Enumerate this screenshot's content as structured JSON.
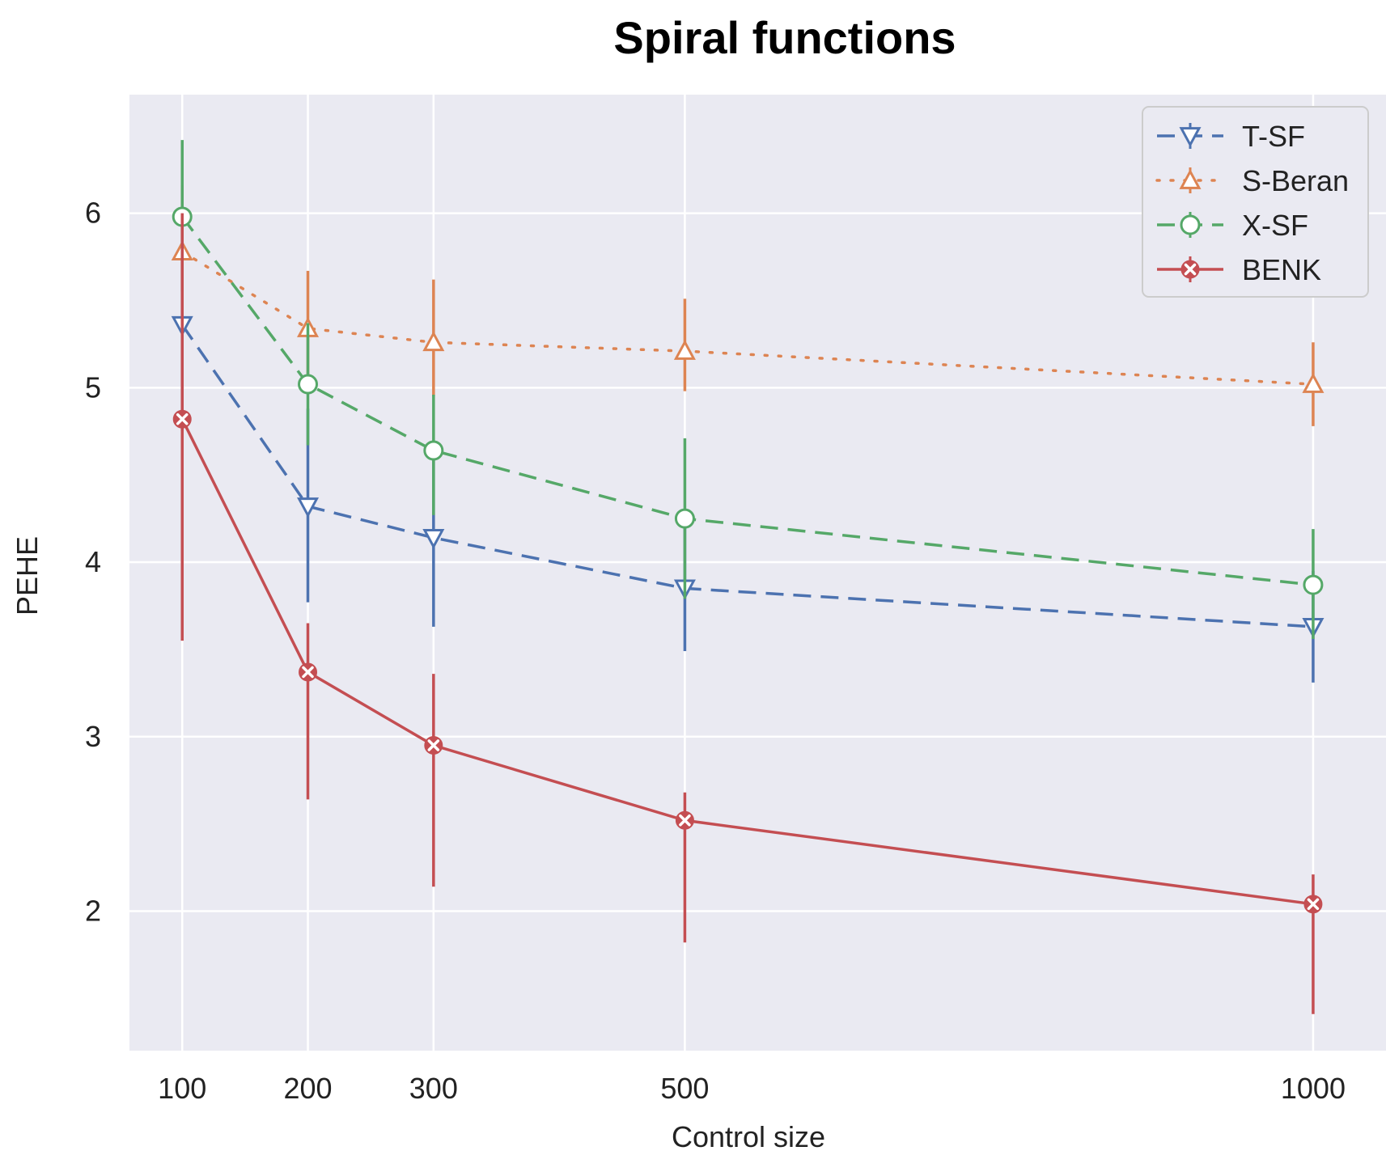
{
  "chart_data": {
    "type": "line",
    "title": "Spiral functions",
    "xlabel": "Control size",
    "ylabel": "PEHE",
    "x": [
      100,
      200,
      300,
      500,
      1000
    ],
    "xticks": [
      "100",
      "200",
      "300",
      "500",
      "1000"
    ],
    "yticks": [
      "2",
      "3",
      "4",
      "5",
      "6"
    ],
    "ytick_values": [
      2,
      3,
      4,
      5,
      6
    ],
    "xlim": [
      58,
      1058
    ],
    "ylim": [
      1.2,
      6.68
    ],
    "grid": true,
    "legend_position": "top-right",
    "series": [
      {
        "name": "T-SF",
        "color": "#4c72b0",
        "linestyle": "dashed",
        "marker": "triangle-down",
        "values": [
          5.36,
          4.32,
          4.14,
          3.85,
          3.63
        ],
        "err_low": [
          4.75,
          3.77,
          3.63,
          3.49,
          3.31
        ],
        "err_high": [
          5.96,
          4.88,
          4.63,
          4.23,
          3.95
        ]
      },
      {
        "name": "S-Beran",
        "color": "#dd8452",
        "linestyle": "dotted",
        "marker": "triangle-up",
        "values": [
          5.78,
          5.34,
          5.26,
          5.21,
          5.02
        ],
        "err_low": [
          5.33,
          5.0,
          4.95,
          4.98,
          4.78
        ],
        "err_high": [
          6.16,
          5.67,
          5.62,
          5.51,
          5.26
        ]
      },
      {
        "name": "X-SF",
        "color": "#55a868",
        "linestyle": "dashed",
        "marker": "circle",
        "values": [
          5.98,
          5.02,
          4.64,
          4.25,
          3.87
        ],
        "err_low": [
          5.55,
          4.67,
          4.27,
          3.79,
          3.56
        ],
        "err_high": [
          6.42,
          5.37,
          4.96,
          4.71,
          4.19
        ]
      },
      {
        "name": "BENK",
        "color": "#c44e52",
        "linestyle": "solid",
        "marker": "x-circle",
        "values": [
          4.82,
          3.37,
          2.95,
          2.52,
          2.04
        ],
        "err_low": [
          3.55,
          2.64,
          2.14,
          1.82,
          1.41
        ],
        "err_high": [
          6.0,
          3.65,
          3.36,
          2.68,
          2.21
        ]
      }
    ]
  }
}
